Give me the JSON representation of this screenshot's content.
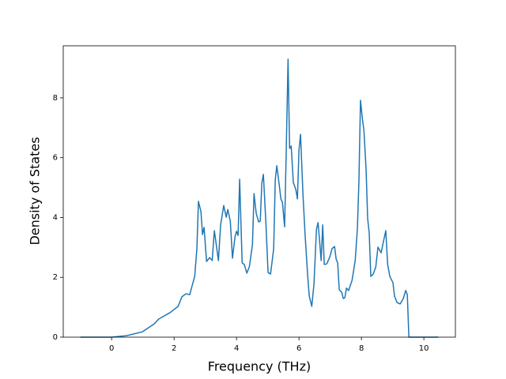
{
  "chart_data": {
    "type": "line",
    "x_label": "Frequency (THz)",
    "y_label": "Density of States",
    "color": "#1f77b4",
    "xlim": [
      -1.55,
      11.01
    ],
    "ylim": [
      0,
      9.74
    ],
    "xticks": [
      0,
      2,
      4,
      6,
      8,
      10
    ],
    "yticks": [
      0,
      2,
      4,
      6,
      8
    ],
    "x": [
      -1,
      0,
      0.48,
      0.99,
      1.37,
      1.5,
      1.87,
      2.13,
      2.25,
      2.38,
      2.5,
      2.66,
      2.73,
      2.78,
      2.86,
      2.91,
      2.96,
      3.04,
      3.14,
      3.22,
      3.29,
      3.42,
      3.49,
      3.59,
      3.67,
      3.72,
      3.8,
      3.87,
      3.95,
      4.0,
      4.05,
      4.1,
      4.18,
      4.25,
      4.33,
      4.41,
      4.51,
      4.56,
      4.63,
      4.71,
      4.76,
      4.81,
      4.86,
      4.94,
      5.01,
      5.09,
      5.19,
      5.24,
      5.29,
      5.37,
      5.42,
      5.47,
      5.54,
      5.59,
      5.65,
      5.7,
      5.75,
      5.82,
      5.9,
      5.95,
      6.0,
      6.05,
      6.13,
      6.2,
      6.28,
      6.33,
      6.41,
      6.48,
      6.56,
      6.61,
      6.66,
      6.71,
      6.76,
      6.81,
      6.89,
      6.99,
      7.06,
      7.14,
      7.19,
      7.24,
      7.29,
      7.37,
      7.42,
      7.47,
      7.52,
      7.59,
      7.7,
      7.8,
      7.87,
      7.92,
      7.97,
      8.03,
      8.08,
      8.15,
      8.2,
      8.25,
      8.3,
      8.38,
      8.46,
      8.53,
      8.63,
      8.71,
      8.78,
      8.84,
      8.91,
      9.01,
      9.06,
      9.14,
      9.24,
      9.34,
      9.42,
      9.47,
      9.52,
      10.46
    ],
    "values": [
      0,
      0,
      0.05,
      0.18,
      0.45,
      0.6,
      0.82,
      1.03,
      1.35,
      1.45,
      1.42,
      2.03,
      2.95,
      4.54,
      4.2,
      3.43,
      3.67,
      2.53,
      2.66,
      2.56,
      3.56,
      2.56,
      3.75,
      4.4,
      4.01,
      4.27,
      3.88,
      2.64,
      3.35,
      3.54,
      3.4,
      5.28,
      2.48,
      2.43,
      2.14,
      2.35,
      3.09,
      4.8,
      4.14,
      3.85,
      3.88,
      5.15,
      5.44,
      3.83,
      2.16,
      2.11,
      2.96,
      5.25,
      5.73,
      5.07,
      4.62,
      4.51,
      3.69,
      6.12,
      9.29,
      6.31,
      6.39,
      5.17,
      4.93,
      4.62,
      6.25,
      6.78,
      4.72,
      3.35,
      2.03,
      1.37,
      1.03,
      1.77,
      3.61,
      3.83,
      3.22,
      2.56,
      3.75,
      2.43,
      2.45,
      2.69,
      2.96,
      3.03,
      2.61,
      2.48,
      1.58,
      1.5,
      1.29,
      1.32,
      1.64,
      1.56,
      1.9,
      2.56,
      3.61,
      5.2,
      7.92,
      7.31,
      6.91,
      5.59,
      3.96,
      3.48,
      2.03,
      2.11,
      2.35,
      3.01,
      2.82,
      3.22,
      3.56,
      2.43,
      2.03,
      1.82,
      1.37,
      1.16,
      1.11,
      1.29,
      1.56,
      1.42,
      0,
      0
    ]
  }
}
